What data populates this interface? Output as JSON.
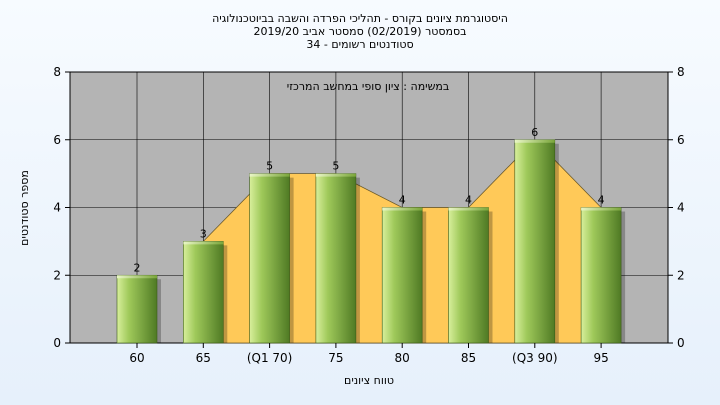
{
  "chart_data": {
    "type": "bar",
    "title_lines": [
      "היסטוגרמת ציונים בקורס - תהליכי הפרדה והשבה בביוטכנולוגיה",
      "בסמסטר  (02/2019)  סמסטר אביב 2019/20",
      "סטודנטים רשומים - 34"
    ],
    "annotation": "במשימה : ציון סופי במחשב המרכזי",
    "categories": [
      "60",
      "65",
      "(Q1 70)",
      "75",
      "80",
      "85",
      "(Q3 90)",
      "95"
    ],
    "values": [
      2,
      3,
      5,
      5,
      4,
      4,
      6,
      4
    ],
    "data_labels": [
      "2",
      "3",
      "5",
      "5",
      "4",
      "4",
      "6",
      "4"
    ],
    "xlabel": "טווח ציונים",
    "ylabel": "מספר סטודנטים",
    "ylim": [
      0,
      8
    ],
    "yticks": [
      "0",
      "2",
      "4",
      "6",
      "8"
    ],
    "grid": true,
    "colors": {
      "plot_bg": "#b4b4b4",
      "area_fill": "#ffc958",
      "bar_light": "#d8ef9c",
      "bar_mid": "#9fc95a",
      "bar_dark": "#4f7a24",
      "grid": "#000000"
    }
  }
}
